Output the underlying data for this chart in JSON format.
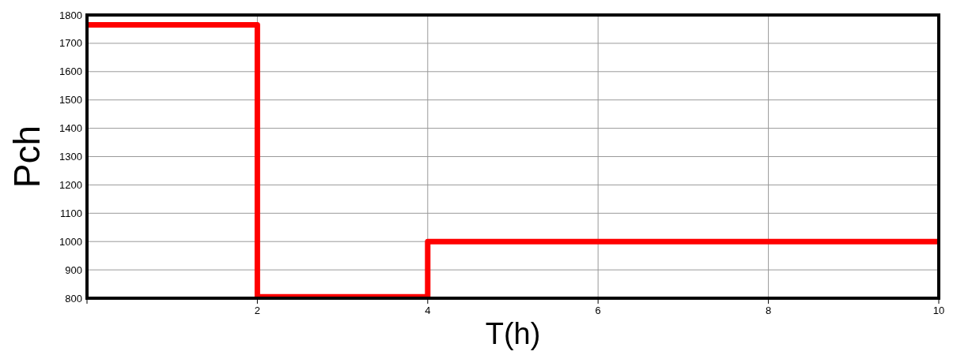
{
  "chart_data": {
    "type": "step",
    "xlabel": "T(h)",
    "ylabel": "Pch",
    "x": [
      0,
      2,
      4,
      10
    ],
    "series": [
      {
        "color": "#ff0000",
        "values": [
          1765,
          805,
          1000,
          1000
        ]
      }
    ],
    "xlim": [
      0,
      10
    ],
    "xticks": [
      {
        "value": 0,
        "label": null
      },
      2,
      4,
      6,
      8,
      10
    ],
    "ylim": [
      800,
      1800
    ],
    "yticks": [
      800,
      900,
      1000,
      1100,
      1200,
      1300,
      1400,
      1500,
      1600,
      1700,
      1800
    ],
    "grid": true
  }
}
